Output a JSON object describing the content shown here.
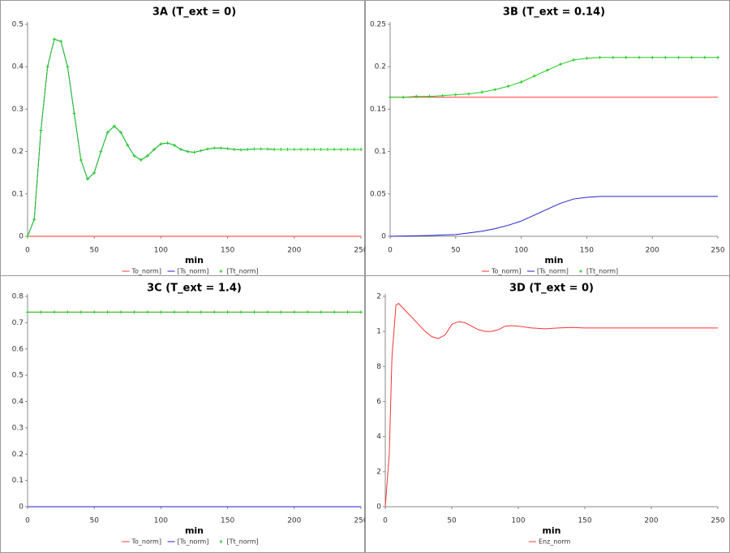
{
  "chart_data": [
    {
      "type": "line",
      "title": "3A (T_ext = 0)",
      "x_label": "min",
      "x": [
        0,
        5,
        10,
        15,
        20,
        25,
        30,
        35,
        40,
        45,
        50,
        55,
        60,
        65,
        70,
        75,
        80,
        85,
        90,
        95,
        100,
        105,
        110,
        115,
        120,
        125,
        130,
        135,
        140,
        145,
        150,
        155,
        160,
        165,
        170,
        175,
        180,
        185,
        190,
        195,
        200,
        205,
        210,
        215,
        220,
        225,
        230,
        235,
        240,
        245,
        250
      ],
      "xlim": [
        0,
        250
      ],
      "xticks": [
        0,
        50,
        100,
        150,
        200,
        250
      ],
      "ylim": [
        0,
        0.5
      ],
      "yticks": [
        0,
        0.1,
        0.2,
        0.3,
        0.4,
        0.5
      ],
      "series": [
        {
          "name": "To_norm]",
          "color": "#ff3333",
          "values": [
            0,
            0,
            0,
            0,
            0,
            0,
            0,
            0,
            0,
            0,
            0,
            0,
            0,
            0,
            0,
            0,
            0,
            0,
            0,
            0,
            0,
            0,
            0,
            0,
            0,
            0,
            0,
            0,
            0,
            0,
            0,
            0,
            0,
            0,
            0,
            0,
            0,
            0,
            0,
            0,
            0,
            0,
            0,
            0,
            0,
            0,
            0,
            0,
            0,
            0,
            0
          ]
        },
        {
          "name": "[Ts_norm]",
          "color": "#2222cc",
          "values": [
            0,
            0.04,
            0.25,
            0.4,
            0.465,
            0.46,
            0.4,
            0.29,
            0.18,
            0.135,
            0.15,
            0.2,
            0.245,
            0.26,
            0.245,
            0.215,
            0.19,
            0.18,
            0.19,
            0.205,
            0.218,
            0.22,
            0.215,
            0.205,
            0.2,
            0.198,
            0.202,
            0.206,
            0.208,
            0.208,
            0.207,
            0.205,
            0.204,
            0.205,
            0.206,
            0.206,
            0.206,
            0.205,
            0.205,
            0.205,
            0.205,
            0.205,
            0.205,
            0.205,
            0.205,
            0.205,
            0.205,
            0.205,
            0.205,
            0.205,
            0.205
          ]
        },
        {
          "name": "[Tt_norm]",
          "color": "#22cc22",
          "marker": "plus",
          "values": [
            0,
            0.04,
            0.25,
            0.4,
            0.465,
            0.46,
            0.4,
            0.29,
            0.18,
            0.135,
            0.15,
            0.2,
            0.245,
            0.26,
            0.245,
            0.215,
            0.19,
            0.18,
            0.19,
            0.205,
            0.218,
            0.22,
            0.215,
            0.205,
            0.2,
            0.198,
            0.202,
            0.206,
            0.208,
            0.208,
            0.207,
            0.205,
            0.204,
            0.205,
            0.206,
            0.206,
            0.206,
            0.205,
            0.205,
            0.205,
            0.205,
            0.205,
            0.205,
            0.205,
            0.205,
            0.205,
            0.205,
            0.205,
            0.205,
            0.205,
            0.205
          ]
        }
      ]
    },
    {
      "type": "line",
      "title": "3B (T_ext = 0.14)",
      "x_label": "min",
      "x": [
        0,
        10,
        20,
        30,
        40,
        50,
        60,
        70,
        80,
        90,
        100,
        110,
        120,
        130,
        140,
        150,
        160,
        170,
        180,
        190,
        200,
        210,
        220,
        230,
        240,
        250
      ],
      "xlim": [
        0,
        250
      ],
      "xticks": [
        0,
        50,
        100,
        150,
        200,
        250
      ],
      "ylim": [
        0,
        0.25
      ],
      "yticks": [
        0,
        0.05,
        0.1,
        0.15,
        0.2,
        0.25
      ],
      "series": [
        {
          "name": "To_norm]",
          "color": "#ff3333",
          "values": [
            0.164,
            0.164,
            0.164,
            0.164,
            0.164,
            0.164,
            0.164,
            0.164,
            0.164,
            0.164,
            0.164,
            0.164,
            0.164,
            0.164,
            0.164,
            0.164,
            0.164,
            0.164,
            0.164,
            0.164,
            0.164,
            0.164,
            0.164,
            0.164,
            0.164,
            0.164
          ]
        },
        {
          "name": "[Ts_norm]",
          "color": "#2222cc",
          "values": [
            0,
            0.0003,
            0.0006,
            0.001,
            0.0015,
            0.002,
            0.004,
            0.006,
            0.009,
            0.013,
            0.018,
            0.025,
            0.032,
            0.039,
            0.044,
            0.046,
            0.047,
            0.047,
            0.047,
            0.047,
            0.047,
            0.047,
            0.047,
            0.047,
            0.047,
            0.047
          ]
        },
        {
          "name": "[Tt_norm]",
          "color": "#22cc22",
          "marker": "plus",
          "values": [
            0.164,
            0.164,
            0.165,
            0.165,
            0.166,
            0.167,
            0.168,
            0.17,
            0.173,
            0.177,
            0.182,
            0.189,
            0.196,
            0.203,
            0.208,
            0.21,
            0.211,
            0.211,
            0.211,
            0.211,
            0.211,
            0.211,
            0.211,
            0.211,
            0.211,
            0.211
          ]
        }
      ]
    },
    {
      "type": "line",
      "title": "3C (T_ext = 1.4)",
      "x_label": "min",
      "x": [
        0,
        10,
        20,
        30,
        40,
        50,
        60,
        70,
        80,
        90,
        100,
        110,
        120,
        130,
        140,
        150,
        160,
        170,
        180,
        190,
        200,
        210,
        220,
        230,
        240,
        250
      ],
      "xlim": [
        0,
        250
      ],
      "xticks": [
        0,
        50,
        100,
        150,
        200,
        250
      ],
      "ylim": [
        0,
        0.8
      ],
      "yticks": [
        0,
        0.1,
        0.2,
        0.3,
        0.4,
        0.5,
        0.6,
        0.7,
        0.8
      ],
      "series": [
        {
          "name": "To_norm]",
          "color": "#ff3333",
          "values": [
            0.74,
            0.74,
            0.74,
            0.74,
            0.74,
            0.74,
            0.74,
            0.74,
            0.74,
            0.74,
            0.74,
            0.74,
            0.74,
            0.74,
            0.74,
            0.74,
            0.74,
            0.74,
            0.74,
            0.74,
            0.74,
            0.74,
            0.74,
            0.74,
            0.74,
            0.74
          ]
        },
        {
          "name": "[Ts_norm]",
          "color": "#2222cc",
          "values": [
            0,
            0,
            0,
            0,
            0,
            0,
            0,
            0,
            0,
            0,
            0,
            0,
            0,
            0,
            0,
            0,
            0,
            0,
            0,
            0,
            0,
            0,
            0,
            0,
            0,
            0
          ]
        },
        {
          "name": "[Tt_norm]",
          "color": "#22cc22",
          "marker": "plus",
          "values": [
            0.74,
            0.74,
            0.74,
            0.74,
            0.74,
            0.74,
            0.74,
            0.74,
            0.74,
            0.74,
            0.74,
            0.74,
            0.74,
            0.74,
            0.74,
            0.74,
            0.74,
            0.74,
            0.74,
            0.74,
            0.74,
            0.74,
            0.74,
            0.74,
            0.74,
            0.74
          ]
        }
      ]
    },
    {
      "type": "line",
      "title": "3D (T_ext = 0)",
      "x_label": "min",
      "x": [
        0,
        3,
        5,
        8,
        10,
        15,
        20,
        25,
        30,
        35,
        40,
        45,
        50,
        55,
        60,
        65,
        70,
        75,
        80,
        85,
        90,
        95,
        100,
        110,
        120,
        130,
        140,
        150,
        160,
        170,
        180,
        190,
        200,
        210,
        220,
        230,
        240,
        250
      ],
      "xlim": [
        0,
        250
      ],
      "xticks": [
        0,
        50,
        100,
        150,
        200,
        250
      ],
      "ylim": [
        0,
        1.2
      ],
      "yticks": [
        0,
        {
          "value": 0.2,
          "label": "2"
        },
        {
          "value": 0.4,
          "label": "4"
        },
        {
          "value": 0.6,
          "label": "6"
        },
        {
          "value": 0.8,
          "label": "8"
        },
        1,
        {
          "value": 1.2,
          "label": "2"
        }
      ],
      "series": [
        {
          "name": "Enz_norm",
          "color": "#ff3333",
          "values": [
            0,
            0.3,
            0.85,
            1.15,
            1.16,
            1.12,
            1.08,
            1.04,
            1.0,
            0.97,
            0.96,
            0.98,
            1.04,
            1.056,
            1.05,
            1.03,
            1.01,
            1.0,
            1.0,
            1.01,
            1.03,
            1.033,
            1.03,
            1.02,
            1.015,
            1.02,
            1.023,
            1.02,
            1.02,
            1.02,
            1.02,
            1.02,
            1.02,
            1.02,
            1.02,
            1.02,
            1.02,
            1.02
          ]
        }
      ]
    }
  ]
}
